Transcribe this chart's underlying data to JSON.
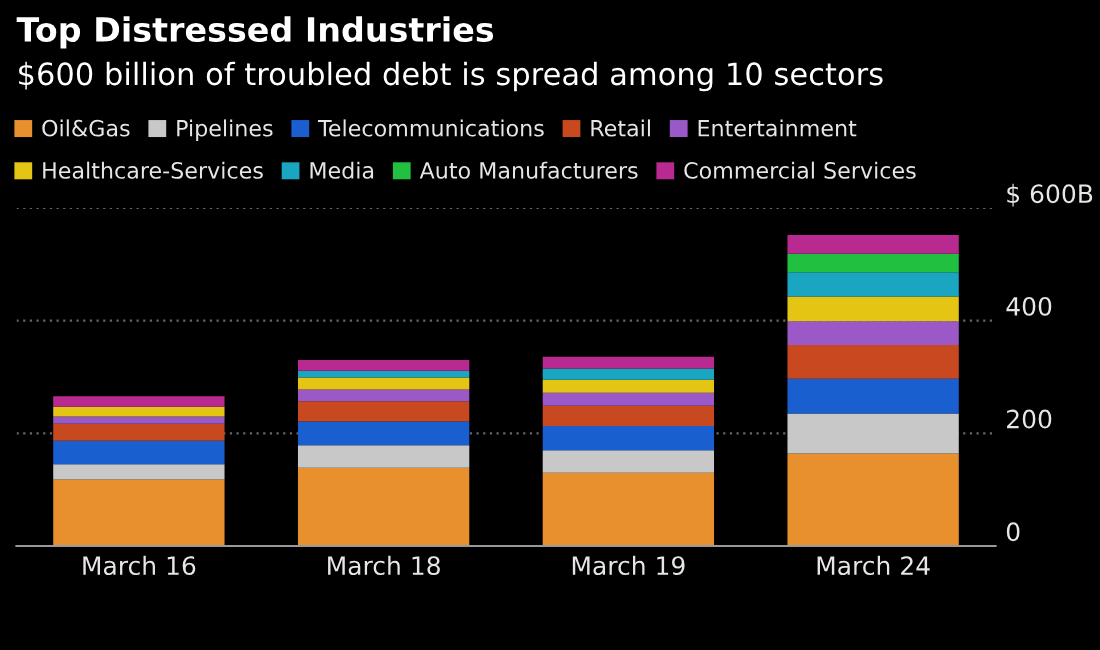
{
  "chart_data": {
    "type": "bar",
    "stacked": true,
    "title": "Top Distressed Industries",
    "subtitle": "$600 billion of troubled debt is spread among 10 sectors",
    "categories": [
      "March 16",
      "March 18",
      "March 19",
      "March 24"
    ],
    "series": [
      {
        "name": "Oil&Gas",
        "color": "#e8902d",
        "values": [
          118,
          139,
          130,
          164
        ]
      },
      {
        "name": "Pipelines",
        "color": "#c8c8c8",
        "values": [
          27,
          40,
          40,
          71
        ]
      },
      {
        "name": "Telecommunications",
        "color": "#1a5fd0",
        "values": [
          42,
          42,
          43,
          62
        ]
      },
      {
        "name": "Retail",
        "color": "#c8491f",
        "values": [
          30,
          36,
          36,
          60
        ]
      },
      {
        "name": "Entertainment",
        "color": "#9b59c8",
        "values": [
          13,
          21,
          23,
          42
        ]
      },
      {
        "name": "Healthcare-Services",
        "color": "#e5c513",
        "values": [
          17,
          21,
          23,
          44
        ]
      },
      {
        "name": "Media",
        "color": "#1aa5c0",
        "values": [
          0,
          12,
          20,
          43
        ]
      },
      {
        "name": "Auto Manufacturers",
        "color": "#22c040",
        "values": [
          0,
          0,
          0,
          33
        ]
      },
      {
        "name": "Commercial Services",
        "color": "#b82a8f",
        "values": [
          19,
          19,
          21,
          33
        ]
      }
    ],
    "ylim": [
      0,
      600
    ],
    "yticks": [
      0,
      200,
      400,
      {
        "value": 600,
        "label": "$ 600B"
      }
    ],
    "grid": "y",
    "legend": "top left"
  }
}
